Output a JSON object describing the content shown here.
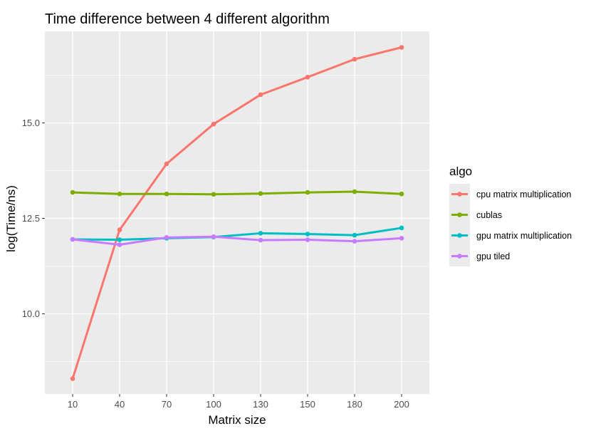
{
  "chart_data": {
    "type": "line",
    "title": "Time difference between 4 different algorithm",
    "xlabel": "Matrix size",
    "ylabel": "log(Time/ns)",
    "categories": [
      "10",
      "40",
      "70",
      "100",
      "130",
      "150",
      "180",
      "200"
    ],
    "ylim": [
      7.9,
      17.4
    ],
    "yticks": [
      10.0,
      12.5,
      15.0
    ],
    "ytick_labels": [
      "10.0",
      "12.5",
      "15.0"
    ],
    "grid": true,
    "legend": {
      "title": "algo",
      "position": "right"
    },
    "series": [
      {
        "name": "cpu matrix multiplication",
        "color": "#F8766D",
        "values": [
          8.3,
          12.2,
          13.93,
          14.97,
          15.74,
          16.2,
          16.67,
          16.98
        ]
      },
      {
        "name": "cublas",
        "color": "#7CAE00",
        "values": [
          13.18,
          13.14,
          13.14,
          13.13,
          13.15,
          13.18,
          13.2,
          13.14
        ]
      },
      {
        "name": "gpu matrix multiplication",
        "color": "#00BFC4",
        "values": [
          11.95,
          11.94,
          11.98,
          12.01,
          12.11,
          12.09,
          12.06,
          12.25
        ]
      },
      {
        "name": "gpu tiled",
        "color": "#C77CFF",
        "values": [
          11.95,
          11.81,
          12.0,
          12.02,
          11.93,
          11.94,
          11.9,
          11.98
        ]
      }
    ]
  }
}
